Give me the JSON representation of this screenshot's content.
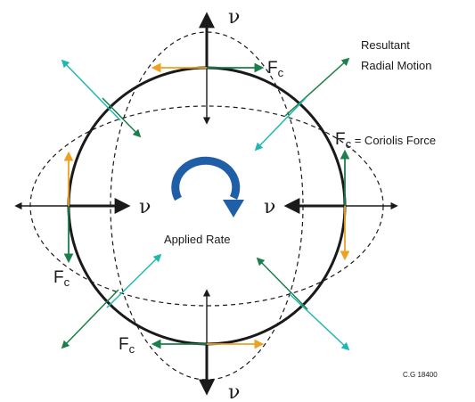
{
  "labels": {
    "nu_symbol": "ν",
    "fc_main": "F",
    "fc_sub": "c",
    "coriolis_suffix": " = Coriolis Force",
    "resultant_line1": "Resultant",
    "resultant_line2": "Radial Motion",
    "applied_rate": "Applied Rate",
    "figure_code": "C.G 18400"
  },
  "colors": {
    "outline": "#1a1a1a",
    "teal": "#1fb8b0",
    "green": "#1a7f4a",
    "orange": "#f0a020",
    "blue": "#1f5fa8"
  }
}
